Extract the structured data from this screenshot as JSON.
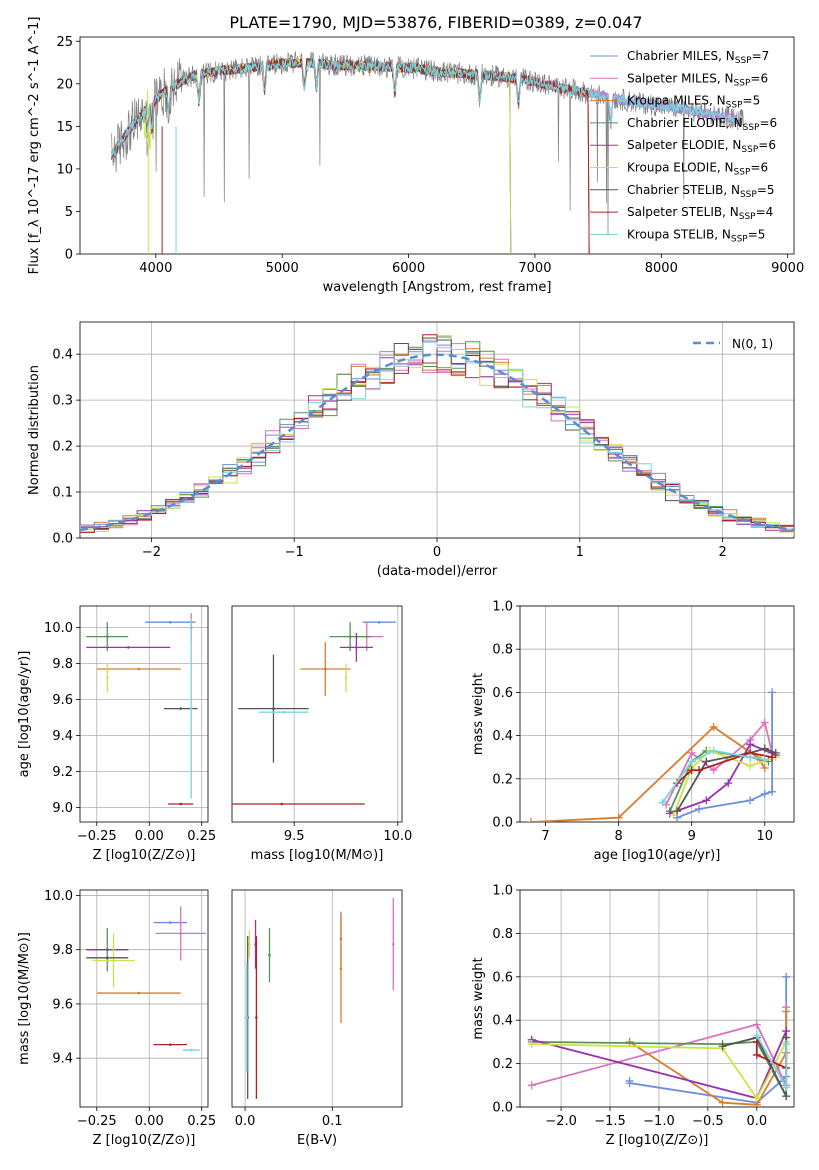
{
  "figure": {
    "title": "PLATE=1790, MJD=53876, FIBERID=0389, z=0.047"
  },
  "colors": [
    "#6a8fdd",
    "#d873c0",
    "#d97d2a",
    "#55935a",
    "#9a30b0",
    "#cfe04a",
    "#555555",
    "#b02020",
    "#79d4dc"
  ],
  "series_names": [
    "Chabrier MILES, N_SSP=7",
    "Salpeter MILES, N_SSP=6",
    "Kroupa MILES, N_SSP=5",
    "Chabrier ELODIE, N_SSP=6",
    "Salpeter ELODIE, N_SSP=6",
    "Kroupa ELODIE, N_SSP=6",
    "Chabrier STELIB, N_SSP=5",
    "Salpeter STELIB, N_SSP=4",
    "Kroupa STELIB, N_SSP=5"
  ],
  "chart_data": [
    {
      "id": "spectrum",
      "type": "line",
      "xlabel": "wavelength [Angstrom, rest frame]",
      "ylabel": "Flux [f_λ 10^-17 erg cm^-2 s^-1 A^-1]",
      "xlim": [
        3400,
        9050
      ],
      "ylim": [
        0,
        25.5
      ],
      "xticks": [
        4000,
        5000,
        6000,
        7000,
        8000,
        9000
      ],
      "yticks": [
        0,
        5,
        10,
        15,
        20,
        25
      ],
      "legend": "top-right",
      "continuum": {
        "x": [
          3650,
          3800,
          3950,
          4100,
          4300,
          4500,
          4800,
          5000,
          5200,
          5400,
          5700,
          6000,
          6300,
          6600,
          6900,
          7200,
          7500,
          7800,
          8100,
          8400,
          8600
        ],
        "y": [
          11.5,
          14.8,
          17.5,
          19.5,
          21.0,
          21.5,
          22.0,
          22.4,
          22.5,
          22.2,
          22.1,
          21.9,
          21.3,
          21.0,
          20.6,
          19.5,
          18.7,
          17.8,
          17.2,
          16.4,
          15.8
        ]
      },
      "observed_range": [
        3650,
        8650
      ],
      "series_ranges": [
        [
          3650,
          8600
        ],
        [
          3650,
          8600
        ],
        [
          3650,
          7420
        ],
        [
          3650,
          6800
        ],
        [
          3650,
          6800
        ],
        [
          3900,
          6800
        ],
        [
          3650,
          7420
        ],
        [
          3650,
          7420
        ],
        [
          3650,
          8580
        ]
      ]
    },
    {
      "id": "residuals",
      "type": "line",
      "xlabel": "(data-model)/error",
      "ylabel": "Normed distribution",
      "xlim": [
        -2.5,
        2.5
      ],
      "ylim": [
        0,
        0.47
      ],
      "xticks": [
        -2,
        -1,
        0,
        1,
        2
      ],
      "yticks": [
        0.0,
        0.1,
        0.2,
        0.3,
        0.4
      ],
      "legend": "top-right",
      "reference_label": "N(0, 1)",
      "bin_width": 0.1
    },
    {
      "id": "age-vs-Z",
      "type": "scatter",
      "xlabel": "Z [log10(Z/Z⊙)]",
      "ylabel": "age [log10(age/yr)]",
      "xlim": [
        -0.33,
        0.28
      ],
      "ylim": [
        8.92,
        10.12
      ],
      "xticks": [
        -0.25,
        0.0,
        0.25
      ],
      "yticks": [
        9.0,
        9.2,
        9.4,
        9.6,
        9.8,
        10.0
      ],
      "points": [
        {
          "x": 0.1,
          "y": 10.03,
          "xerr": 0.12,
          "yerr": 0.0
        },
        {
          "x": 0.2,
          "y": 10.0,
          "xerr": 0.0,
          "yerr": 0.08
        },
        {
          "x": -0.05,
          "y": 9.77,
          "xerr": 0.2,
          "yerr": 0.0
        },
        {
          "x": -0.2,
          "y": 9.95,
          "xerr": 0.1,
          "yerr": 0.08
        },
        {
          "x": -0.1,
          "y": 9.89,
          "xerr": 0.2,
          "yerr": 0.0
        },
        {
          "x": -0.2,
          "y": 9.72,
          "xerr": 0.0,
          "yerr": 0.08
        },
        {
          "x": 0.15,
          "y": 9.55,
          "xerr": 0.08,
          "yerr": 0.0
        },
        {
          "x": 0.15,
          "y": 9.02,
          "xerr": 0.06,
          "yerr": 0.0
        },
        {
          "x": 0.2,
          "y": 9.55,
          "xerr": 0.0,
          "yerr": 0.5
        }
      ]
    },
    {
      "id": "age-vs-mass",
      "type": "scatter",
      "xlabel": "mass [log10(M/M⊙)]",
      "ylabel": "",
      "xlim": [
        9.2,
        10.02
      ],
      "ylim": [
        8.92,
        10.12
      ],
      "xticks": [
        9.5,
        10.0
      ],
      "yticks": [],
      "points": [
        {
          "x": 9.91,
          "y": 10.03,
          "xerr": 0.08,
          "yerr": 0.0
        },
        {
          "x": 9.85,
          "y": 9.95,
          "xerr": 0.08,
          "yerr": 0.08
        },
        {
          "x": 9.65,
          "y": 9.77,
          "xerr": 0.12,
          "yerr": 0.15
        },
        {
          "x": 9.77,
          "y": 9.95,
          "xerr": 0.1,
          "yerr": 0.08
        },
        {
          "x": 9.8,
          "y": 9.89,
          "xerr": 0.08,
          "yerr": 0.08
        },
        {
          "x": 9.75,
          "y": 9.72,
          "xerr": 0.0,
          "yerr": 0.08
        },
        {
          "x": 9.4,
          "y": 9.55,
          "xerr": 0.17,
          "yerr": 0.3
        },
        {
          "x": 9.44,
          "y": 9.02,
          "xerr": 0.4,
          "yerr": 0.0
        },
        {
          "x": 9.45,
          "y": 9.53,
          "xerr": 0.12,
          "yerr": 0.0
        }
      ]
    },
    {
      "id": "mass-weight-vs-age",
      "type": "line",
      "xlabel": "age [log10(age/yr)]",
      "ylabel": "mass weight",
      "xlim": [
        6.65,
        10.4
      ],
      "ylim": [
        0,
        1.0
      ],
      "xticks": [
        7,
        8,
        9,
        10
      ],
      "yticks": [
        0.0,
        0.2,
        0.4,
        0.6,
        0.8,
        1.0
      ],
      "series": [
        {
          "x": [
            8.8,
            9.1,
            9.8,
            10.0,
            10.1,
            10.1
          ],
          "y": [
            0.02,
            0.06,
            0.1,
            0.13,
            0.14,
            0.6
          ]
        },
        {
          "x": [
            8.65,
            9.0,
            9.3,
            9.8,
            10.0,
            10.1
          ],
          "y": [
            0.08,
            0.32,
            0.24,
            0.38,
            0.46,
            0.32
          ]
        },
        {
          "x": [
            6.8,
            8.0,
            9.3,
            9.9,
            10.0
          ],
          "y": [
            0.0,
            0.02,
            0.44,
            0.3,
            0.25
          ]
        },
        {
          "x": [
            8.7,
            9.0,
            9.2,
            9.8,
            10.05
          ],
          "y": [
            0.05,
            0.28,
            0.33,
            0.3,
            0.28
          ]
        },
        {
          "x": [
            8.7,
            9.2,
            9.5,
            9.8,
            10.15
          ],
          "y": [
            0.04,
            0.1,
            0.18,
            0.36,
            0.31
          ]
        },
        {
          "x": [
            8.75,
            9.0,
            9.25,
            9.8,
            10.15
          ],
          "y": [
            0.03,
            0.25,
            0.33,
            0.26,
            0.3
          ]
        },
        {
          "x": [
            8.8,
            9.2,
            9.8,
            10.0,
            10.15
          ],
          "y": [
            0.05,
            0.28,
            0.32,
            0.34,
            0.32
          ]
        },
        {
          "x": [
            8.8,
            9.0,
            9.1,
            9.8,
            10.1
          ],
          "y": [
            0.18,
            0.24,
            0.24,
            0.32,
            0.3
          ]
        },
        {
          "x": [
            8.6,
            9.0,
            9.3,
            9.8,
            10.0
          ],
          "y": [
            0.09,
            0.28,
            0.33,
            0.3,
            0.29
          ]
        }
      ]
    },
    {
      "id": "mass-vs-Z",
      "type": "scatter",
      "xlabel": "Z [log10(Z/Z⊙)]",
      "ylabel": "mass [log10(M/M⊙)]",
      "xlim": [
        -0.33,
        0.28
      ],
      "ylim": [
        9.22,
        10.02
      ],
      "xticks": [
        -0.25,
        0.0,
        0.25
      ],
      "yticks": [
        9.4,
        9.6,
        9.8,
        10.0
      ],
      "points": [
        {
          "x": 0.1,
          "y": 9.9,
          "xerr": 0.08,
          "yerr": 0.0
        },
        {
          "x": 0.15,
          "y": 9.86,
          "xerr": 0.12,
          "yerr": 0.1
        },
        {
          "x": -0.05,
          "y": 9.64,
          "xerr": 0.2,
          "yerr": 0.0
        },
        {
          "x": -0.2,
          "y": 9.8,
          "xerr": 0.1,
          "yerr": 0.08
        },
        {
          "x": -0.2,
          "y": 9.8,
          "xerr": 0.1,
          "yerr": 0.0
        },
        {
          "x": -0.17,
          "y": 9.76,
          "xerr": 0.1,
          "yerr": 0.1
        },
        {
          "x": -0.2,
          "y": 9.77,
          "xerr": 0.1,
          "yerr": 0.0
        },
        {
          "x": 0.1,
          "y": 9.45,
          "xerr": 0.08,
          "yerr": 0.0
        },
        {
          "x": 0.2,
          "y": 9.43,
          "xerr": 0.04,
          "yerr": 0.0
        }
      ]
    },
    {
      "id": "mass-vs-EBV",
      "type": "scatter",
      "xlabel": "E(B-V)",
      "ylabel": "",
      "xlim": [
        -0.015,
        0.18
      ],
      "ylim": [
        9.22,
        10.02
      ],
      "xticks": [
        0.0,
        0.1
      ],
      "yticks": [],
      "points": [
        {
          "x": 0.11,
          "y": 9.84,
          "xerr": 0.0,
          "yerr": 0.1
        },
        {
          "x": 0.17,
          "y": 9.82,
          "xerr": 0.0,
          "yerr": 0.17
        },
        {
          "x": 0.11,
          "y": 9.73,
          "xerr": 0.0,
          "yerr": 0.2
        },
        {
          "x": 0.028,
          "y": 9.78,
          "xerr": 0.0,
          "yerr": 0.1
        },
        {
          "x": 0.012,
          "y": 9.82,
          "xerr": 0.0,
          "yerr": 0.09
        },
        {
          "x": 0.005,
          "y": 9.82,
          "xerr": 0.0,
          "yerr": 0.05
        },
        {
          "x": 0.003,
          "y": 9.55,
          "xerr": 0.0,
          "yerr": 0.3
        },
        {
          "x": 0.013,
          "y": 9.55,
          "xerr": 0.0,
          "yerr": 0.3
        },
        {
          "x": 0.002,
          "y": 9.55,
          "xerr": 0.0,
          "yerr": 0.2
        }
      ]
    },
    {
      "id": "mass-weight-vs-Z",
      "type": "line",
      "xlabel": "Z [log10(Z/Z⊙)]",
      "ylabel": "mass weight",
      "xlim": [
        -2.42,
        0.38
      ],
      "ylim": [
        0,
        1.0
      ],
      "xticks": [
        -2.0,
        -1.5,
        -1.0,
        -0.5,
        0.0
      ],
      "yticks": [
        0.0,
        0.2,
        0.4,
        0.6,
        0.8,
        1.0
      ],
      "series": [
        {
          "x": [
            -1.3,
            -1.3,
            0.0,
            0.3,
            0.3
          ],
          "y": [
            0.12,
            0.11,
            0.02,
            0.14,
            0.6
          ]
        },
        {
          "x": [
            -2.3,
            0.0,
            0.3,
            0.3
          ],
          "y": [
            0.1,
            0.38,
            0.1,
            0.46
          ]
        },
        {
          "x": [
            -1.3,
            -0.35,
            0.0,
            0.3,
            0.3
          ],
          "y": [
            0.3,
            0.02,
            0.01,
            0.25,
            0.44
          ]
        },
        {
          "x": [
            -2.3,
            -0.35,
            0.0,
            0.3
          ],
          "y": [
            0.3,
            0.29,
            0.3,
            0.05
          ]
        },
        {
          "x": [
            -2.3,
            0.0,
            0.3
          ],
          "y": [
            0.31,
            0.04,
            0.35
          ]
        },
        {
          "x": [
            -2.3,
            -0.35,
            0.0,
            0.3
          ],
          "y": [
            0.29,
            0.27,
            0.04,
            0.3
          ]
        },
        {
          "x": [
            -0.35,
            0.0,
            0.3,
            0.3
          ],
          "y": [
            0.28,
            0.32,
            0.05,
            0.32
          ]
        },
        {
          "x": [
            0.0,
            0.0,
            0.3
          ],
          "y": [
            0.3,
            0.24,
            0.18
          ]
        },
        {
          "x": [
            0.0,
            0.3,
            0.3
          ],
          "y": [
            0.33,
            0.09,
            0.29
          ]
        }
      ]
    }
  ]
}
